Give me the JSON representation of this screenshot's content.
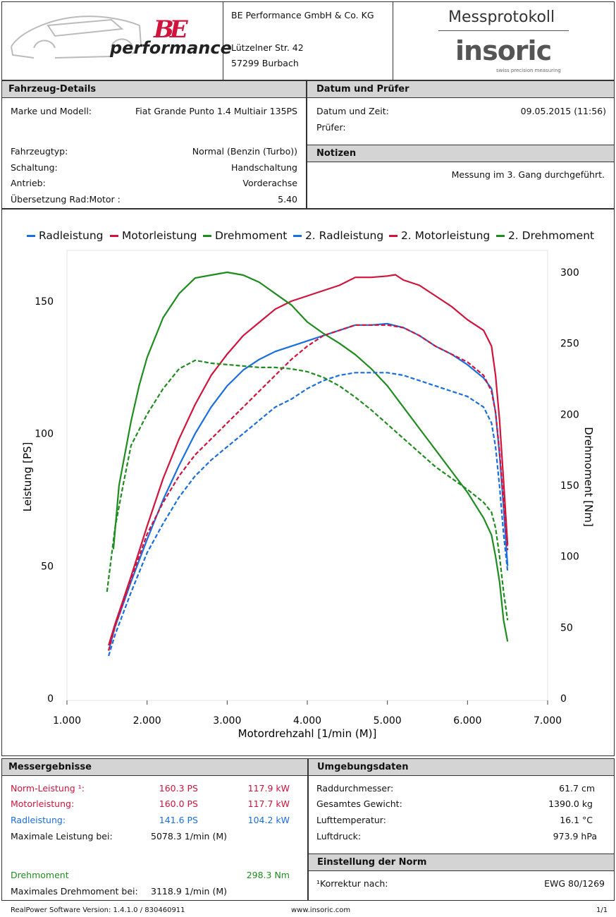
{
  "header": {
    "brand_be": "BE",
    "brand_performance": "performance",
    "company_name": "BE Performance GmbH & Co. KG",
    "street": "Lützelner Str. 42",
    "city": "57299 Burbach",
    "report_title": "Messprotokoll",
    "logo_insoric": "insoric",
    "logo_tagline": "swiss precision measuring"
  },
  "vehicle": {
    "heading": "Fahrzeug-Details",
    "model_label": "Marke und Modell:",
    "model_value": "Fiat Grande Punto 1.4 Multiair 135PS",
    "type_label": "Fahrzeugtyp:",
    "type_value": "Normal (Benzin (Turbo))",
    "gearbox_label": "Schaltung:",
    "gearbox_value": "Handschaltung",
    "drive_label": "Antrieb:",
    "drive_value": "Vorderachse",
    "ratio_label": "Übersetzung Rad:Motor :",
    "ratio_value": "5.40"
  },
  "date_tester": {
    "heading": "Datum und Prüfer",
    "date_label": "Datum und Zeit:",
    "date_value": "09.05.2015 (11:56)",
    "tester_label": "Prüfer:"
  },
  "notes": {
    "heading": "Notizen",
    "text": "Messung im 3. Gang durchgeführt."
  },
  "chart_data": {
    "type": "line",
    "xlabel": "Motordrehzahl [1/min (M)]",
    "ylabel": "Leistung [PS]",
    "y2label": "Drehmoment [Nm]",
    "xlim": [
      1000,
      7000
    ],
    "ylim": [
      0,
      170
    ],
    "y2lim": [
      0,
      300
    ],
    "x_ticks": [
      "1.000",
      "2.000",
      "3.000",
      "4.000",
      "5.000",
      "6.000",
      "7.000"
    ],
    "y_ticks": [
      0,
      50,
      100,
      150
    ],
    "y2_ticks": [
      0,
      50,
      100,
      150,
      200,
      250,
      300
    ],
    "legend_position": "top",
    "series": [
      {
        "name": "Radleistung",
        "color": "#1a6fe0",
        "dashed": false,
        "axis": "left",
        "points": [
          [
            1520,
            18
          ],
          [
            1600,
            27
          ],
          [
            1800,
            44
          ],
          [
            2000,
            60
          ],
          [
            2200,
            75
          ],
          [
            2400,
            88
          ],
          [
            2600,
            100
          ],
          [
            2800,
            110
          ],
          [
            3000,
            118
          ],
          [
            3200,
            124
          ],
          [
            3400,
            128
          ],
          [
            3600,
            131
          ],
          [
            3800,
            133
          ],
          [
            4000,
            135
          ],
          [
            4200,
            137
          ],
          [
            4400,
            139
          ],
          [
            4600,
            141
          ],
          [
            4800,
            141
          ],
          [
            5000,
            141.5
          ],
          [
            5200,
            140
          ],
          [
            5400,
            137
          ],
          [
            5600,
            133
          ],
          [
            5800,
            130
          ],
          [
            6000,
            126
          ],
          [
            6200,
            121
          ],
          [
            6300,
            117
          ],
          [
            6350,
            108
          ],
          [
            6400,
            92
          ],
          [
            6450,
            72
          ],
          [
            6500,
            50
          ]
        ]
      },
      {
        "name": "Motorleistung",
        "color": "#d0143c",
        "dashed": false,
        "axis": "left",
        "points": [
          [
            1520,
            20
          ],
          [
            1600,
            28
          ],
          [
            1800,
            46
          ],
          [
            2000,
            65
          ],
          [
            2200,
            83
          ],
          [
            2400,
            98
          ],
          [
            2600,
            111
          ],
          [
            2800,
            122
          ],
          [
            3000,
            130
          ],
          [
            3200,
            137
          ],
          [
            3400,
            142
          ],
          [
            3600,
            147
          ],
          [
            3800,
            150
          ],
          [
            4000,
            152
          ],
          [
            4200,
            154
          ],
          [
            4400,
            156
          ],
          [
            4600,
            159
          ],
          [
            4800,
            159
          ],
          [
            5000,
            159.5
          ],
          [
            5100,
            160
          ],
          [
            5200,
            158
          ],
          [
            5400,
            156
          ],
          [
            5600,
            152
          ],
          [
            5800,
            148
          ],
          [
            6000,
            143
          ],
          [
            6200,
            139
          ],
          [
            6300,
            133
          ],
          [
            6350,
            122
          ],
          [
            6400,
            105
          ],
          [
            6450,
            82
          ],
          [
            6500,
            58
          ]
        ]
      },
      {
        "name": "Drehmoment",
        "color": "#1f8c1f",
        "dashed": false,
        "axis": "right",
        "points": [
          [
            1580,
            105
          ],
          [
            1650,
            150
          ],
          [
            1800,
            195
          ],
          [
            1900,
            220
          ],
          [
            2000,
            240
          ],
          [
            2200,
            268
          ],
          [
            2400,
            285
          ],
          [
            2600,
            296
          ],
          [
            2800,
            298
          ],
          [
            3000,
            300
          ],
          [
            3200,
            298
          ],
          [
            3400,
            293
          ],
          [
            3600,
            285
          ],
          [
            3800,
            277
          ],
          [
            4000,
            265
          ],
          [
            4200,
            257
          ],
          [
            4400,
            250
          ],
          [
            4600,
            242
          ],
          [
            4800,
            232
          ],
          [
            5000,
            220
          ],
          [
            5200,
            205
          ],
          [
            5400,
            190
          ],
          [
            5600,
            175
          ],
          [
            5800,
            160
          ],
          [
            6000,
            145
          ],
          [
            6200,
            127
          ],
          [
            6300,
            115
          ],
          [
            6350,
            100
          ],
          [
            6400,
            82
          ],
          [
            6450,
            55
          ],
          [
            6500,
            40
          ]
        ]
      },
      {
        "name": "2. Radleistung",
        "color": "#1a6fe0",
        "dashed": true,
        "axis": "left",
        "points": [
          [
            1520,
            16
          ],
          [
            1600,
            24
          ],
          [
            1800,
            40
          ],
          [
            2000,
            55
          ],
          [
            2200,
            66
          ],
          [
            2400,
            76
          ],
          [
            2600,
            84
          ],
          [
            2800,
            90
          ],
          [
            3000,
            95
          ],
          [
            3200,
            100
          ],
          [
            3400,
            105
          ],
          [
            3600,
            110
          ],
          [
            3800,
            113
          ],
          [
            4000,
            117
          ],
          [
            4200,
            120
          ],
          [
            4400,
            122
          ],
          [
            4600,
            123
          ],
          [
            4800,
            123
          ],
          [
            5000,
            123
          ],
          [
            5200,
            122
          ],
          [
            5400,
            120
          ],
          [
            5600,
            118
          ],
          [
            5800,
            116
          ],
          [
            6000,
            114
          ],
          [
            6200,
            110
          ],
          [
            6300,
            104
          ],
          [
            6350,
            95
          ],
          [
            6400,
            80
          ],
          [
            6450,
            62
          ],
          [
            6500,
            48
          ]
        ]
      },
      {
        "name": "2. Motorleistung",
        "color": "#d0143c",
        "dashed": true,
        "axis": "left",
        "points": [
          [
            1520,
            18
          ],
          [
            1600,
            27
          ],
          [
            1800,
            45
          ],
          [
            2000,
            62
          ],
          [
            2200,
            74
          ],
          [
            2400,
            84
          ],
          [
            2600,
            92
          ],
          [
            2800,
            98
          ],
          [
            3000,
            104
          ],
          [
            3200,
            110
          ],
          [
            3400,
            116
          ],
          [
            3600,
            122
          ],
          [
            3800,
            128
          ],
          [
            4000,
            133
          ],
          [
            4200,
            137
          ],
          [
            4400,
            139
          ],
          [
            4600,
            141
          ],
          [
            4800,
            141
          ],
          [
            5000,
            141
          ],
          [
            5200,
            140
          ],
          [
            5400,
            137
          ],
          [
            5600,
            133
          ],
          [
            5800,
            130
          ],
          [
            6000,
            127
          ],
          [
            6200,
            122
          ],
          [
            6300,
            116
          ],
          [
            6350,
            108
          ],
          [
            6400,
            93
          ],
          [
            6450,
            74
          ],
          [
            6500,
            56
          ]
        ]
      },
      {
        "name": "2. Drehmoment",
        "color": "#1f8c1f",
        "dashed": true,
        "axis": "right",
        "points": [
          [
            1500,
            75
          ],
          [
            1600,
            120
          ],
          [
            1700,
            150
          ],
          [
            1800,
            178
          ],
          [
            2000,
            200
          ],
          [
            2200,
            218
          ],
          [
            2400,
            232
          ],
          [
            2600,
            238
          ],
          [
            2800,
            236
          ],
          [
            3000,
            235
          ],
          [
            3200,
            234
          ],
          [
            3400,
            233
          ],
          [
            3600,
            233
          ],
          [
            3800,
            232
          ],
          [
            4000,
            230
          ],
          [
            4200,
            226
          ],
          [
            4400,
            220
          ],
          [
            4600,
            212
          ],
          [
            4800,
            203
          ],
          [
            5000,
            193
          ],
          [
            5200,
            183
          ],
          [
            5400,
            173
          ],
          [
            5600,
            163
          ],
          [
            5800,
            155
          ],
          [
            6000,
            147
          ],
          [
            6200,
            138
          ],
          [
            6300,
            131
          ],
          [
            6350,
            120
          ],
          [
            6400,
            100
          ],
          [
            6450,
            75
          ],
          [
            6500,
            55
          ]
        ]
      }
    ]
  },
  "results": {
    "heading": "Messergebnisse",
    "norm_label": "Norm-Leistung ¹:",
    "norm_ps": "160.3 PS",
    "norm_kw": "117.9 kW",
    "motor_label": "Motorleistung:",
    "motor_ps": "160.0 PS",
    "motor_kw": "117.7 kW",
    "wheel_label": "Radleistung:",
    "wheel_ps": "141.6 PS",
    "wheel_kw": "104.2 kW",
    "maxpower_label": "Maximale Leistung bei:",
    "maxpower_value": "5078.3 1/min (M)",
    "torque_label": "Drehmoment",
    "torque_value": "298.3 Nm",
    "maxtorque_label": "Maximales Drehmoment bei:",
    "maxtorque_value": "3118.9 1/min (M)"
  },
  "environment": {
    "heading": "Umgebungsdaten",
    "wheel_diam_label": "Raddurchmesser:",
    "wheel_diam_value": "61.7 cm",
    "weight_label": "Gesamtes Gewicht:",
    "weight_value": "1390.0 kg",
    "air_temp_label": "Lufttemperatur:",
    "air_temp_value": "16.1 °C",
    "air_pressure_label": "Luftdruck:",
    "air_pressure_value": "973.9 hPa"
  },
  "norm": {
    "heading": "Einstellung der Norm",
    "correction_label": "¹Korrektur nach:",
    "correction_value": "EWG 80/1269"
  },
  "footer": {
    "software": "RealPower Software Version: 1.4.1.0 / 830460911",
    "website": "www.insoric.com",
    "page": "1/1"
  }
}
